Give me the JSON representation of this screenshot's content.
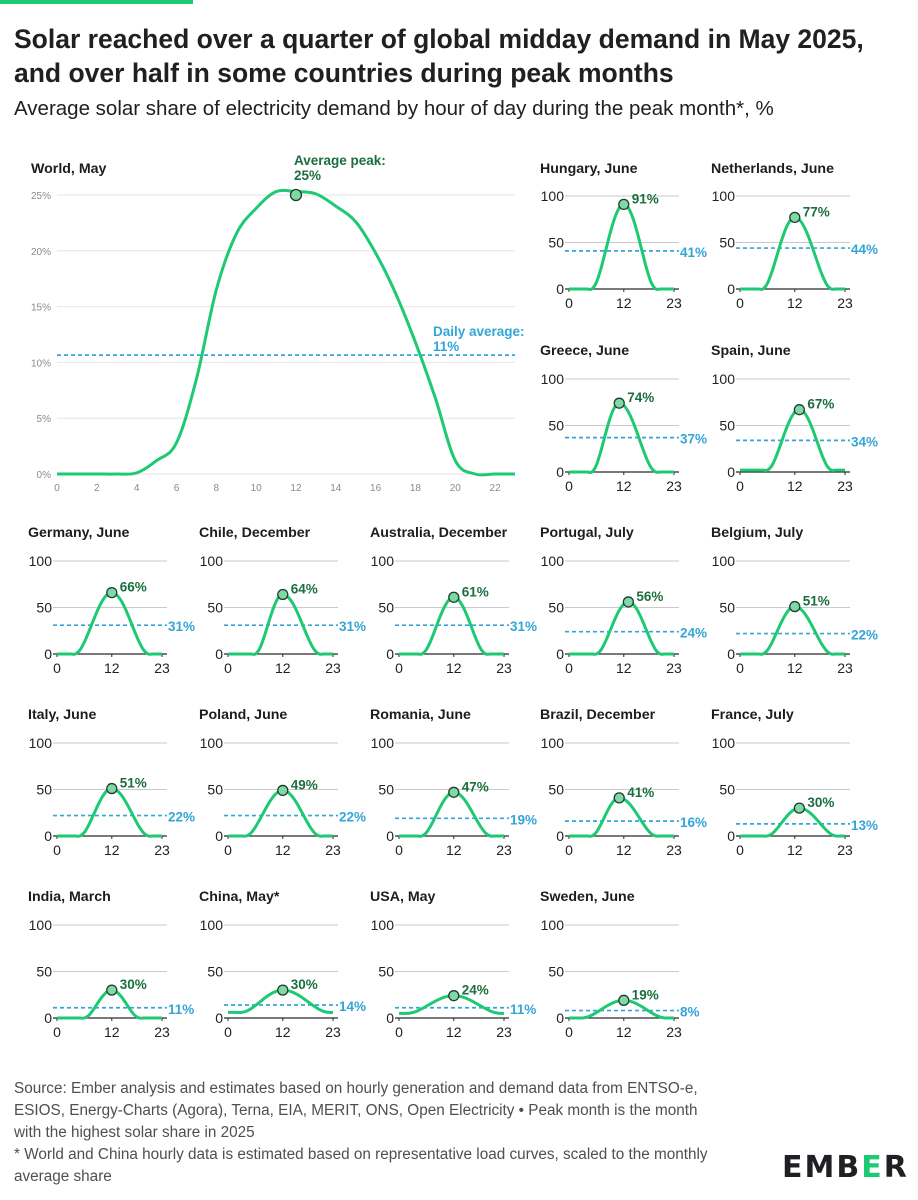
{
  "title": "Solar reached over a quarter of global midday demand in May 2025, and over half in some countries during peak months",
  "subtitle": "Average solar share of electricity demand by hour of day during the peak month*, %",
  "footer": {
    "source": "Source: Ember analysis and estimates based on hourly generation and demand data from ENTSO-e, ESIOS, Energy-Charts (Agora), Terna, EIA, MERIT, ONS, Open Electricity • Peak month is the month with the highest solar share in 2025",
    "note": "* World and China hourly data is estimated based on representative load curves, scaled to the monthly average share"
  },
  "logo": {
    "prefix": "EMB",
    "mark": "E",
    "suffix": "R"
  },
  "colors": {
    "line": "#1ec973",
    "average": "#33a6d6",
    "peak_text": "#1b6f3e",
    "grid": "#cfcfd4"
  },
  "chart_data": [
    {
      "type": "line",
      "title": "World, May",
      "x": [
        0,
        1,
        2,
        3,
        4,
        5,
        6,
        7,
        8,
        9,
        10,
        11,
        12,
        13,
        14,
        15,
        16,
        17,
        18,
        19,
        20,
        21,
        22,
        23
      ],
      "values": [
        0,
        0,
        0,
        0,
        0.1,
        1.2,
        2.8,
        8.5,
        16.5,
        21.5,
        23.8,
        25.3,
        25.3,
        25.1,
        24.0,
        22.6,
        19.8,
        16.2,
        11.8,
        6.8,
        1.2,
        0,
        0,
        0
      ],
      "xticks": [
        "0",
        "2",
        "4",
        "6",
        "8",
        "10",
        "12",
        "14",
        "16",
        "18",
        "20",
        "22"
      ],
      "yticks": [
        "0%",
        "5%",
        "10%",
        "15%",
        "20%",
        "25%"
      ],
      "ylim": [
        0,
        26.5
      ],
      "peak": {
        "hour": 12,
        "value": 25,
        "label": "25%",
        "title": "Average peak:"
      },
      "average": {
        "value": 11,
        "label": "11%",
        "title": "Daily average:"
      }
    },
    {
      "type": "line",
      "title": "Hungary, June",
      "peak": {
        "hour": 12,
        "value": 91,
        "label": "91%"
      },
      "average": {
        "value": 41,
        "label": "41%"
      },
      "start": 5,
      "end": 19,
      "yticks": [
        "0",
        "50",
        "100"
      ],
      "xticks": [
        "0",
        "12",
        "23"
      ]
    },
    {
      "type": "line",
      "title": "Netherlands, June",
      "peak": {
        "hour": 12,
        "value": 77,
        "label": "77%"
      },
      "average": {
        "value": 44,
        "label": "44%"
      },
      "start": 5,
      "end": 20,
      "yticks": [
        "0",
        "50",
        "100"
      ],
      "xticks": [
        "0",
        "12",
        "23"
      ]
    },
    {
      "type": "line",
      "title": "Greece, June",
      "peak": {
        "hour": 11,
        "value": 74,
        "label": "74%"
      },
      "average": {
        "value": 37,
        "label": "37%"
      },
      "start": 5,
      "end": 19,
      "yticks": [
        "0",
        "50",
        "100"
      ],
      "xticks": [
        "0",
        "12",
        "23"
      ]
    },
    {
      "type": "line",
      "title": "Spain, June",
      "peak": {
        "hour": 13,
        "value": 67,
        "label": "67%"
      },
      "average": {
        "value": 34,
        "label": "34%"
      },
      "start": 6,
      "end": 20,
      "base": 2,
      "yticks": [
        "0",
        "50",
        "100"
      ],
      "xticks": [
        "0",
        "12",
        "23"
      ]
    },
    {
      "type": "line",
      "title": "Germany, June",
      "peak": {
        "hour": 12,
        "value": 66,
        "label": "66%"
      },
      "average": {
        "value": 31,
        "label": "31%"
      },
      "start": 4,
      "end": 20,
      "yticks": [
        "0",
        "50",
        "100"
      ],
      "xticks": [
        "0",
        "12",
        "23"
      ]
    },
    {
      "type": "line",
      "title": "Chile, December",
      "peak": {
        "hour": 12,
        "value": 64,
        "label": "64%"
      },
      "average": {
        "value": 31,
        "label": "31%"
      },
      "start": 6,
      "end": 20,
      "yticks": [
        "0",
        "50",
        "100"
      ],
      "xticks": [
        "0",
        "12",
        "23"
      ]
    },
    {
      "type": "line",
      "title": "Australia, December",
      "peak": {
        "hour": 12,
        "value": 61,
        "label": "61%"
      },
      "average": {
        "value": 31,
        "label": "31%"
      },
      "start": 5,
      "end": 19,
      "yticks": [
        "0",
        "50",
        "100"
      ],
      "xticks": [
        "0",
        "12",
        "23"
      ]
    },
    {
      "type": "line",
      "title": "Portugal, July",
      "peak": {
        "hour": 13,
        "value": 56,
        "label": "56%"
      },
      "average": {
        "value": 24,
        "label": "24%"
      },
      "start": 6,
      "end": 20,
      "yticks": [
        "0",
        "50",
        "100"
      ],
      "xticks": [
        "0",
        "12",
        "23"
      ]
    },
    {
      "type": "line",
      "title": "Belgium, July",
      "peak": {
        "hour": 12,
        "value": 51,
        "label": "51%"
      },
      "average": {
        "value": 22,
        "label": "22%"
      },
      "start": 5,
      "end": 20,
      "yticks": [
        "0",
        "50",
        "100"
      ],
      "xticks": [
        "0",
        "12",
        "23"
      ]
    },
    {
      "type": "line",
      "title": "Italy, June",
      "peak": {
        "hour": 12,
        "value": 51,
        "label": "51%"
      },
      "average": {
        "value": 22,
        "label": "22%"
      },
      "start": 5,
      "end": 20,
      "yticks": [
        "0",
        "50",
        "100"
      ],
      "xticks": [
        "0",
        "12",
        "23"
      ]
    },
    {
      "type": "line",
      "title": "Poland, June",
      "peak": {
        "hour": 12,
        "value": 49,
        "label": "49%"
      },
      "average": {
        "value": 22,
        "label": "22%"
      },
      "start": 4,
      "end": 20,
      "yticks": [
        "0",
        "50",
        "100"
      ],
      "xticks": [
        "0",
        "12",
        "23"
      ]
    },
    {
      "type": "line",
      "title": "Romania, June",
      "peak": {
        "hour": 12,
        "value": 47,
        "label": "47%"
      },
      "average": {
        "value": 19,
        "label": "19%"
      },
      "start": 5,
      "end": 20,
      "yticks": [
        "0",
        "50",
        "100"
      ],
      "xticks": [
        "0",
        "12",
        "23"
      ]
    },
    {
      "type": "line",
      "title": "Brazil, December",
      "peak": {
        "hour": 11,
        "value": 41,
        "label": "41%"
      },
      "average": {
        "value": 16,
        "label": "16%"
      },
      "start": 5,
      "end": 19,
      "yticks": [
        "0",
        "50",
        "100"
      ],
      "xticks": [
        "0",
        "12",
        "23"
      ]
    },
    {
      "type": "line",
      "title": "France, July",
      "peak": {
        "hour": 13,
        "value": 30,
        "label": "30%"
      },
      "average": {
        "value": 13,
        "label": "13%"
      },
      "start": 6,
      "end": 21,
      "yticks": [
        "0",
        "50",
        "100"
      ],
      "xticks": [
        "0",
        "12",
        "23"
      ]
    },
    {
      "type": "line",
      "title": "India, March",
      "peak": {
        "hour": 12,
        "value": 30,
        "label": "30%"
      },
      "average": {
        "value": 11,
        "label": "11%"
      },
      "start": 6,
      "end": 18,
      "yticks": [
        "0",
        "50",
        "100"
      ],
      "xticks": [
        "0",
        "12",
        "23"
      ]
    },
    {
      "type": "line",
      "title": "China, May*",
      "peak": {
        "hour": 12,
        "value": 30,
        "label": "30%"
      },
      "average": {
        "value": 14,
        "label": "14%"
      },
      "start": 3,
      "end": 22,
      "base": 6,
      "yticks": [
        "0",
        "50",
        "100"
      ],
      "xticks": [
        "0",
        "12",
        "23"
      ]
    },
    {
      "type": "line",
      "title": "USA, May",
      "peak": {
        "hour": 12,
        "value": 24,
        "label": "24%"
      },
      "average": {
        "value": 11,
        "label": "11%"
      },
      "start": 2,
      "end": 22,
      "base": 5,
      "yticks": [
        "0",
        "50",
        "100"
      ],
      "xticks": [
        "0",
        "12",
        "23"
      ]
    },
    {
      "type": "line",
      "title": "Sweden, June",
      "peak": {
        "hour": 12,
        "value": 19,
        "label": "19%"
      },
      "average": {
        "value": 8,
        "label": "8%"
      },
      "start": 3,
      "end": 21,
      "yticks": [
        "0",
        "50",
        "100"
      ],
      "xticks": [
        "0",
        "12",
        "23"
      ]
    }
  ]
}
